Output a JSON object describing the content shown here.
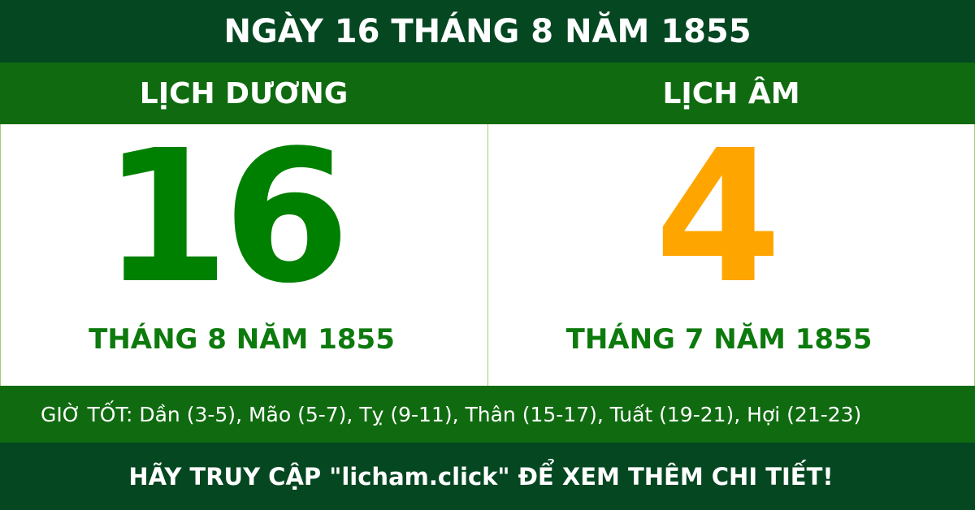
{
  "header": {
    "title": "NGÀY 16 THÁNG 8 NĂM 1855"
  },
  "solar": {
    "label": "LỊCH DƯƠNG",
    "day": "16",
    "month_year": "THÁNG 8 NĂM 1855"
  },
  "lunar": {
    "label": "LỊCH ÂM",
    "day": "4",
    "month_year": "THÁNG 7 NĂM 1855"
  },
  "good_hours": "GIỜ TỐT: Dần (3-5), Mão (5-7), Tỵ (9-11), Thân (15-17), Tuất (19-21), Hợi (21-23)",
  "footer": {
    "cta": "HÃY TRUY CẬP \"licham.click\" ĐỂ XEM THÊM CHI TIẾT!"
  },
  "colors": {
    "dark_green": "#044721",
    "green": "#106b10",
    "solar_day": "#008000",
    "lunar_day": "#ffa500"
  }
}
